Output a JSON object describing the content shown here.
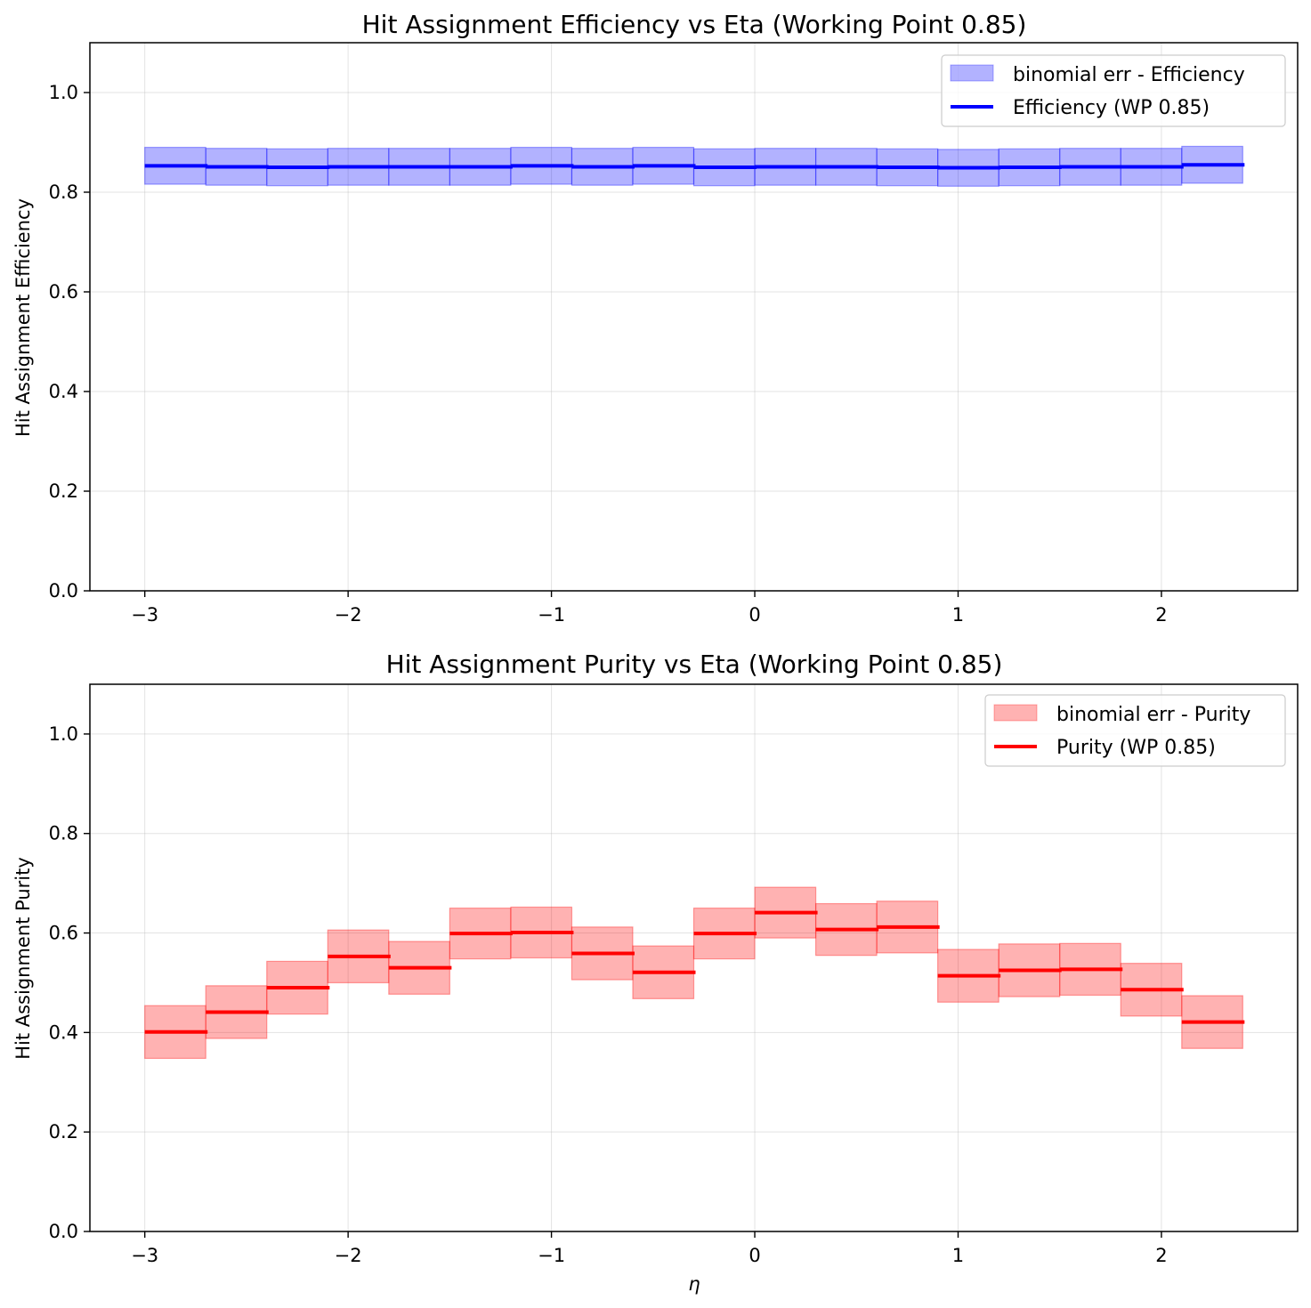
{
  "chart_data": [
    {
      "type": "step",
      "title": "Hit Assignment Efficiency vs Eta (Working Point 0.85)",
      "xlabel": "",
      "ylabel": "Hit Assignment Efficiency",
      "xlim": [
        -3.27,
        2.67
      ],
      "ylim": [
        0,
        1.1
      ],
      "xticks": [
        -3,
        -2,
        -1,
        0,
        1,
        2
      ],
      "xtick_labels": [
        "−3",
        "−2",
        "−1",
        "0",
        "1",
        "2"
      ],
      "yticks": [
        0.0,
        0.2,
        0.4,
        0.6,
        0.8,
        1.0
      ],
      "ytick_labels": [
        "0.0",
        "0.2",
        "0.4",
        "0.6",
        "0.8",
        "1.0"
      ],
      "grid": true,
      "legend_position": "top-right",
      "bin_edges": [
        -3.0,
        -2.7,
        -2.4,
        -2.1,
        -1.8,
        -1.5,
        -1.2,
        -0.9,
        -0.6,
        -0.3,
        0.0,
        0.3,
        0.6,
        0.9,
        1.2,
        1.5,
        1.8,
        2.1,
        2.4
      ],
      "values": [
        0.853,
        0.851,
        0.85,
        0.851,
        0.851,
        0.851,
        0.853,
        0.851,
        0.853,
        0.85,
        0.851,
        0.851,
        0.85,
        0.849,
        0.85,
        0.851,
        0.851,
        0.855
      ],
      "err": [
        0.037,
        0.037,
        0.037,
        0.037,
        0.037,
        0.037,
        0.037,
        0.037,
        0.037,
        0.037,
        0.037,
        0.037,
        0.037,
        0.037,
        0.037,
        0.037,
        0.037,
        0.037
      ],
      "line_color": "#0000ff",
      "band_fill": "#0000ff",
      "band_opacity": 0.3,
      "band_stroke": "#0000ff",
      "legend": [
        {
          "label": "binomial err - Efficiency",
          "kind": "band"
        },
        {
          "label": "Efficiency (WP 0.85)",
          "kind": "line"
        }
      ]
    },
    {
      "type": "step",
      "title": "Hit Assignment Purity vs Eta (Working Point 0.85)",
      "xlabel": "η",
      "ylabel": "Hit Assignment Purity",
      "xlim": [
        -3.27,
        2.67
      ],
      "ylim": [
        0,
        1.1
      ],
      "xticks": [
        -3,
        -2,
        -1,
        0,
        1,
        2
      ],
      "xtick_labels": [
        "−3",
        "−2",
        "−1",
        "0",
        "1",
        "2"
      ],
      "yticks": [
        0.0,
        0.2,
        0.4,
        0.6,
        0.8,
        1.0
      ],
      "ytick_labels": [
        "0.0",
        "0.2",
        "0.4",
        "0.6",
        "0.8",
        "1.0"
      ],
      "grid": true,
      "legend_position": "top-right",
      "bin_edges": [
        -3.0,
        -2.7,
        -2.4,
        -2.1,
        -1.8,
        -1.5,
        -1.2,
        -0.9,
        -0.6,
        -0.3,
        0.0,
        0.3,
        0.6,
        0.9,
        1.2,
        1.5,
        1.8,
        2.1,
        2.4
      ],
      "values": [
        0.401,
        0.441,
        0.49,
        0.553,
        0.53,
        0.599,
        0.601,
        0.559,
        0.521,
        0.599,
        0.641,
        0.607,
        0.612,
        0.514,
        0.525,
        0.527,
        0.486,
        0.421
      ],
      "err": [
        0.053,
        0.053,
        0.053,
        0.053,
        0.053,
        0.051,
        0.051,
        0.053,
        0.053,
        0.051,
        0.051,
        0.052,
        0.052,
        0.053,
        0.053,
        0.052,
        0.053,
        0.053
      ],
      "line_color": "#ff0000",
      "band_fill": "#ff0000",
      "band_opacity": 0.3,
      "band_stroke": "#ff0000",
      "legend": [
        {
          "label": "binomial err - Purity",
          "kind": "band"
        },
        {
          "label": "Purity (WP 0.85)",
          "kind": "line"
        }
      ]
    }
  ]
}
